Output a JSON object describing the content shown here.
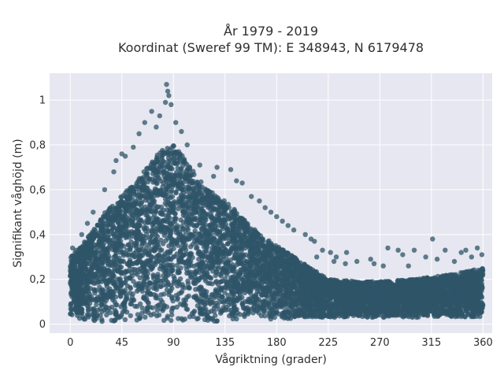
{
  "chart_data": {
    "type": "scatter",
    "title": "År 1979 - 2019",
    "subtitle": "Koordinat (Sweref 99 TM): E 348943, N 6179478",
    "xlabel": "Vågriktning (grader)",
    "ylabel": "Signifikant våghöjd (m)",
    "xlim": [
      -18,
      368
    ],
    "ylim": [
      -0.04,
      1.12
    ],
    "xticks": [
      0,
      45,
      90,
      135,
      180,
      225,
      270,
      315,
      360
    ],
    "xtick_labels": [
      "0",
      "45",
      "90",
      "135",
      "180",
      "225",
      "270",
      "315",
      "360"
    ],
    "yticks": [
      0,
      0.2,
      0.4,
      0.6,
      0.8,
      1
    ],
    "ytick_labels": [
      "0",
      "0,2",
      "0,4",
      "0,6",
      "0,8",
      "1"
    ],
    "grid": true,
    "background": "#e6e7f0",
    "marker_color": "#2f5468",
    "density_envelope": [
      {
        "x": 0,
        "ymin": 0.03,
        "ymax": 0.3
      },
      {
        "x": 10,
        "ymin": 0.02,
        "ymax": 0.35
      },
      {
        "x": 20,
        "ymin": 0.01,
        "ymax": 0.42
      },
      {
        "x": 30,
        "ymin": 0.01,
        "ymax": 0.5
      },
      {
        "x": 40,
        "ymin": 0.01,
        "ymax": 0.55
      },
      {
        "x": 50,
        "ymin": 0.01,
        "ymax": 0.6
      },
      {
        "x": 60,
        "ymin": 0.01,
        "ymax": 0.65
      },
      {
        "x": 70,
        "ymin": 0.01,
        "ymax": 0.72
      },
      {
        "x": 80,
        "ymin": 0.01,
        "ymax": 0.78
      },
      {
        "x": 90,
        "ymin": 0.01,
        "ymax": 0.8
      },
      {
        "x": 100,
        "ymin": 0.01,
        "ymax": 0.74
      },
      {
        "x": 110,
        "ymin": 0.01,
        "ymax": 0.66
      },
      {
        "x": 120,
        "ymin": 0.01,
        "ymax": 0.6
      },
      {
        "x": 135,
        "ymin": 0.01,
        "ymax": 0.55
      },
      {
        "x": 150,
        "ymin": 0.02,
        "ymax": 0.48
      },
      {
        "x": 165,
        "ymin": 0.02,
        "ymax": 0.4
      },
      {
        "x": 180,
        "ymin": 0.02,
        "ymax": 0.35
      },
      {
        "x": 195,
        "ymin": 0.02,
        "ymax": 0.3
      },
      {
        "x": 210,
        "ymin": 0.03,
        "ymax": 0.25
      },
      {
        "x": 225,
        "ymin": 0.03,
        "ymax": 0.2
      },
      {
        "x": 250,
        "ymin": 0.03,
        "ymax": 0.19
      },
      {
        "x": 270,
        "ymin": 0.03,
        "ymax": 0.19
      },
      {
        "x": 300,
        "ymin": 0.03,
        "ymax": 0.2
      },
      {
        "x": 330,
        "ymin": 0.03,
        "ymax": 0.22
      },
      {
        "x": 360,
        "ymin": 0.03,
        "ymax": 0.25
      }
    ],
    "outliers": [
      [
        84,
        1.07
      ],
      [
        85,
        1.04
      ],
      [
        86,
        1.02
      ],
      [
        83,
        0.99
      ],
      [
        88,
        0.98
      ],
      [
        71,
        0.95
      ],
      [
        78,
        0.93
      ],
      [
        65,
        0.9
      ],
      [
        92,
        0.9
      ],
      [
        75,
        0.88
      ],
      [
        97,
        0.86
      ],
      [
        60,
        0.85
      ],
      [
        102,
        0.8
      ],
      [
        55,
        0.79
      ],
      [
        45,
        0.76
      ],
      [
        48,
        0.75
      ],
      [
        40,
        0.73
      ],
      [
        113,
        0.71
      ],
      [
        128,
        0.7
      ],
      [
        140,
        0.69
      ],
      [
        38,
        0.68
      ],
      [
        125,
        0.66
      ],
      [
        145,
        0.64
      ],
      [
        150,
        0.63
      ],
      [
        30,
        0.6
      ],
      [
        158,
        0.57
      ],
      [
        165,
        0.55
      ],
      [
        170,
        0.52
      ],
      [
        20,
        0.5
      ],
      [
        175,
        0.5
      ],
      [
        180,
        0.48
      ],
      [
        185,
        0.46
      ],
      [
        15,
        0.45
      ],
      [
        190,
        0.44
      ],
      [
        195,
        0.42
      ],
      [
        10,
        0.4
      ],
      [
        205,
        0.4
      ],
      [
        210,
        0.38
      ],
      [
        213,
        0.37
      ],
      [
        316,
        0.38
      ],
      [
        2,
        0.34
      ],
      [
        5,
        0.33
      ],
      [
        220,
        0.33
      ],
      [
        227,
        0.32
      ],
      [
        241,
        0.32
      ],
      [
        277,
        0.34
      ],
      [
        286,
        0.33
      ],
      [
        300,
        0.33
      ],
      [
        327,
        0.33
      ],
      [
        341,
        0.32
      ],
      [
        355,
        0.34
      ],
      [
        345,
        0.33
      ],
      [
        359,
        0.31
      ],
      [
        350,
        0.3
      ],
      [
        290,
        0.31
      ],
      [
        250,
        0.28
      ],
      [
        265,
        0.27
      ],
      [
        262,
        0.29
      ],
      [
        232,
        0.3
      ],
      [
        230,
        0.28
      ],
      [
        240,
        0.27
      ],
      [
        310,
        0.3
      ],
      [
        320,
        0.29
      ],
      [
        335,
        0.28
      ],
      [
        273,
        0.26
      ],
      [
        295,
        0.26
      ],
      [
        215,
        0.3
      ]
    ]
  }
}
